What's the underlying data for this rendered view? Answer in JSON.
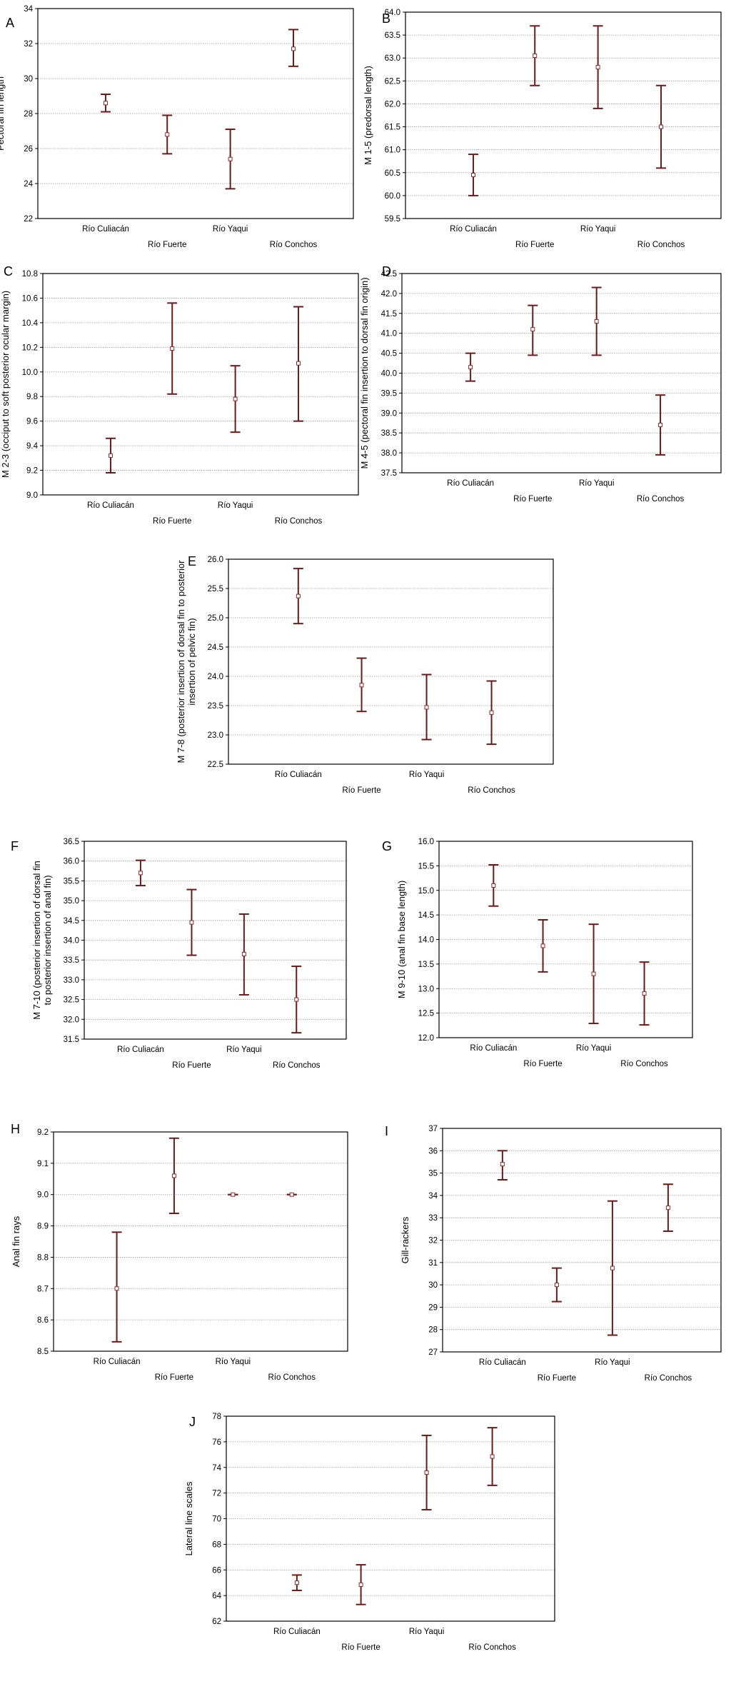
{
  "figure": {
    "colors": {
      "error_bar": "#6b1a1a",
      "mean_marker": "#8a2c2c",
      "grid": "#999999",
      "axis": "#000000"
    }
  },
  "chart_data": [
    {
      "panel": "A",
      "type": "error_bar",
      "ylabel": "Pectoral fin length",
      "categories": [
        "Río Culiacán",
        "Río Fuerte",
        "Río Yaqui",
        "Río Conchos"
      ],
      "ylim": [
        22,
        34
      ],
      "yticks": [
        22,
        24,
        26,
        28,
        30,
        32,
        34
      ],
      "tick_decimals": 0,
      "means": [
        28.6,
        26.8,
        25.4,
        31.7
      ],
      "lower": [
        28.1,
        25.7,
        23.7,
        30.7
      ],
      "upper": [
        29.1,
        27.9,
        27.1,
        32.8
      ]
    },
    {
      "panel": "B",
      "type": "error_bar",
      "ylabel": "M 1-5 (predorsal length)",
      "categories": [
        "Río Culiacán",
        "Río Fuerte",
        "Río Yaqui",
        "Río Conchos"
      ],
      "ylim": [
        59.5,
        64.0
      ],
      "yticks": [
        59.5,
        60.0,
        60.5,
        61.0,
        61.5,
        62.0,
        62.5,
        63.0,
        63.5,
        64.0
      ],
      "tick_decimals": 1,
      "means": [
        60.45,
        63.05,
        62.8,
        61.5
      ],
      "lower": [
        60.0,
        62.4,
        61.9,
        60.6
      ],
      "upper": [
        60.9,
        63.7,
        63.7,
        62.4
      ]
    },
    {
      "panel": "C",
      "type": "error_bar",
      "ylabel": "M 2-3 (occiput to soft posterior ocular margin)",
      "categories": [
        "Río Culiacán",
        "Río Fuerte",
        "Río Yaqui",
        "Río Conchos"
      ],
      "ylim": [
        9.0,
        10.8
      ],
      "yticks": [
        9.0,
        9.2,
        9.4,
        9.6,
        9.8,
        10.0,
        10.2,
        10.4,
        10.6,
        10.8
      ],
      "tick_decimals": 1,
      "means": [
        9.32,
        10.19,
        9.78,
        10.07
      ],
      "lower": [
        9.18,
        9.82,
        9.51,
        9.6
      ],
      "upper": [
        9.46,
        10.56,
        10.05,
        10.53
      ]
    },
    {
      "panel": "D",
      "type": "error_bar",
      "ylabel": "M 4-5 (pectoral fin insertion to dorsal fin origin)",
      "categories": [
        "Río Culiacán",
        "Río Fuerte",
        "Río Yaqui",
        "Río Conchos"
      ],
      "ylim": [
        37.5,
        42.5
      ],
      "yticks": [
        37.5,
        38.0,
        38.5,
        39.0,
        39.5,
        40.0,
        40.5,
        41.0,
        41.5,
        42.0,
        42.5
      ],
      "tick_decimals": 1,
      "means": [
        40.15,
        41.1,
        41.3,
        38.7
      ],
      "lower": [
        39.8,
        40.45,
        40.45,
        37.95
      ],
      "upper": [
        40.5,
        41.7,
        42.15,
        39.45
      ]
    },
    {
      "panel": "E",
      "type": "error_bar",
      "ylabel_lines": [
        "M 7-8 (posterior insertion of dorsal fin to posterior",
        "insertion of pelvic fin)"
      ],
      "categories": [
        "Río Culiacán",
        "Río Fuerte",
        "Río Yaqui",
        "Río Conchos"
      ],
      "ylim": [
        22.5,
        26.0
      ],
      "yticks": [
        22.5,
        23.0,
        23.5,
        24.0,
        24.5,
        25.0,
        25.5,
        26.0
      ],
      "tick_decimals": 1,
      "means": [
        25.37,
        23.85,
        23.47,
        23.38
      ],
      "lower": [
        24.9,
        23.4,
        22.92,
        22.84
      ],
      "upper": [
        25.84,
        24.31,
        24.03,
        23.92
      ]
    },
    {
      "panel": "F",
      "type": "error_bar",
      "ylabel_lines": [
        "M 7-10 (posterior insertion of dorsal fin",
        "to posterior insertion of anal fin)"
      ],
      "categories": [
        "Río Culiacán",
        "Río Fuerte",
        "Río Yaqui",
        "Río Conchos"
      ],
      "ylim": [
        31.5,
        36.5
      ],
      "yticks": [
        31.5,
        32.0,
        32.5,
        33.0,
        33.5,
        34.0,
        34.5,
        35.0,
        35.5,
        36.0,
        36.5
      ],
      "tick_decimals": 1,
      "means": [
        35.7,
        34.45,
        33.65,
        32.5
      ],
      "lower": [
        35.38,
        33.62,
        32.62,
        31.66
      ],
      "upper": [
        36.02,
        35.28,
        34.66,
        33.34
      ]
    },
    {
      "panel": "G",
      "type": "error_bar",
      "ylabel": "M 9-10 (anal fin base length)",
      "categories": [
        "Río Culiacán",
        "Río Fuerte",
        "Río Yaqui",
        "Río Conchos"
      ],
      "ylim": [
        12.0,
        16.0
      ],
      "yticks": [
        12.0,
        12.5,
        13.0,
        13.5,
        14.0,
        14.5,
        15.0,
        15.5,
        16.0
      ],
      "tick_decimals": 1,
      "means": [
        15.1,
        13.87,
        13.3,
        12.9
      ],
      "lower": [
        14.68,
        13.34,
        12.29,
        12.26
      ],
      "upper": [
        15.52,
        14.4,
        14.31,
        13.54
      ]
    },
    {
      "panel": "H",
      "type": "error_bar",
      "ylabel": "Anal fin rays",
      "categories": [
        "Río Culiacán",
        "Río Fuerte",
        "Río Yaqui",
        "Río Conchos"
      ],
      "ylim": [
        8.5,
        9.2
      ],
      "yticks": [
        8.5,
        8.6,
        8.7,
        8.8,
        8.9,
        9.0,
        9.1,
        9.2
      ],
      "tick_decimals": 1,
      "means": [
        8.7,
        9.06,
        9.0,
        9.0
      ],
      "lower": [
        8.53,
        8.94,
        9.0,
        9.0
      ],
      "upper": [
        8.88,
        9.18,
        9.0,
        9.0
      ]
    },
    {
      "panel": "I",
      "type": "error_bar",
      "ylabel": "Gill-rackers",
      "categories": [
        "Río Culiacán",
        "Río Fuerte",
        "Río Yaqui",
        "Río Conchos"
      ],
      "ylim": [
        27,
        37
      ],
      "yticks": [
        27,
        28,
        29,
        30,
        31,
        32,
        33,
        34,
        35,
        36,
        37
      ],
      "tick_decimals": 0,
      "means": [
        35.4,
        30.0,
        30.75,
        33.45
      ],
      "lower": [
        34.7,
        29.25,
        27.75,
        32.4
      ],
      "upper": [
        36.0,
        30.75,
        33.75,
        34.5
      ]
    },
    {
      "panel": "J",
      "type": "error_bar",
      "ylabel": "Lateral line scales",
      "categories": [
        "Río Culiacán",
        "Río Fuerte",
        "Río Yaqui",
        "Río Conchos"
      ],
      "ylim": [
        62,
        78
      ],
      "yticks": [
        62,
        64,
        66,
        68,
        70,
        72,
        74,
        76,
        78
      ],
      "tick_decimals": 0,
      "means": [
        65.0,
        64.85,
        73.6,
        74.85
      ],
      "lower": [
        64.4,
        63.3,
        70.7,
        72.6
      ],
      "upper": [
        65.6,
        66.4,
        76.5,
        77.1
      ]
    }
  ]
}
